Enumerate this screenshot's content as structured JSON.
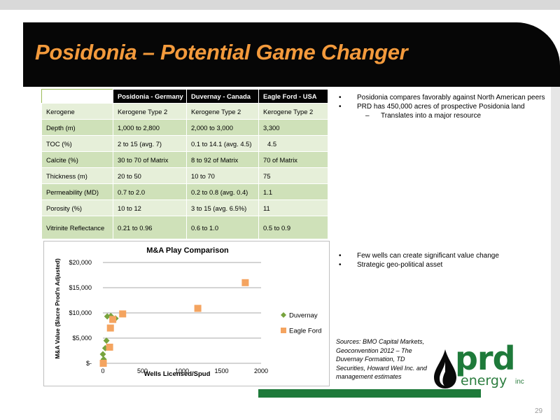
{
  "title": "Posidonia – Potential Game Changer",
  "table": {
    "headers": [
      "",
      "Posidonia - Germany",
      "Duvernay - Canada",
      "Eagle Ford - USA"
    ],
    "rows": [
      [
        "Kerogene",
        "Kerogene Type 2",
        "Kerogene Type 2",
        "Kerogene Type 2"
      ],
      [
        "Depth (m)",
        "1,000 to 2,800",
        "2,000 to 3,000",
        "3,300"
      ],
      [
        "TOC (%)",
        "2 to 15 (avg. 7)",
        "0.1 to 14.1 (avg. 4.5)",
        "4.5"
      ],
      [
        "Calcite (%)",
        "30 to 70 of Matrix",
        "8 to 92 of Matrix",
        "70 of Matrix"
      ],
      [
        "Thickness (m)",
        "20 to 50",
        "10 to 70",
        "75"
      ],
      [
        "Permeability (MD)",
        "0.7 to 2.0",
        "0.2 to 0.8 (avg. 0.4)",
        "1.1"
      ],
      [
        "Porosity (%)",
        "10 to 12",
        "3 to 15 (avg. 6.5%)",
        "11"
      ],
      [
        "Vitrinite Reflectance",
        "0.21 to 0.96",
        "0.6 to 1.0",
        "0.5 to 0.9"
      ]
    ]
  },
  "bullets_top": {
    "items": [
      "Posidonia compares favorably against North American peers",
      "PRD has 450,000 acres of prospective Posidonia land"
    ],
    "sub": "Translates into a major resource"
  },
  "bullets_bottom": {
    "items": [
      "Few wells can create significant value change",
      "Strategic geo-political asset"
    ]
  },
  "sources": "Sources: BMO Capital Markets, Geoconvention 2012 – The Duvernay Formation, TD Securities, Howard Weil Inc. and management estimates",
  "logo": {
    "prd": "prd",
    "energy": "energy",
    "inc": "inc"
  },
  "page_number": "29",
  "colors": {
    "title": "#f39a3c",
    "brand_green": "#1e7a3a",
    "duvernay": "#77a33d",
    "eagle_ford": "#f4a460"
  },
  "chart_data": {
    "type": "scatter",
    "title": "M&A Play Comparison",
    "xlabel": "Wells Licensed/Spud",
    "ylabel": "M&A Value ($/acre Prod'n Adjusted)",
    "xlim": [
      0,
      2000
    ],
    "ylim": [
      0,
      20000
    ],
    "x_ticks": [
      "0",
      "500",
      "1000",
      "1500",
      "2000"
    ],
    "y_ticks": [
      "$-",
      "$5,000",
      "$10,000",
      "$15,000",
      "$20,000"
    ],
    "legend_position": "right",
    "series": [
      {
        "name": "Duvernay",
        "marker": "diamond",
        "points": [
          [
            0,
            1800
          ],
          [
            10,
            800
          ],
          [
            30,
            3000
          ],
          [
            45,
            4500
          ],
          [
            55,
            9300
          ],
          [
            100,
            9400
          ],
          [
            160,
            8900
          ]
        ]
      },
      {
        "name": "Eagle Ford",
        "marker": "square",
        "points": [
          [
            5,
            0
          ],
          [
            85,
            3200
          ],
          [
            95,
            7000
          ],
          [
            125,
            8700
          ],
          [
            250,
            9800
          ],
          [
            1200,
            10900
          ],
          [
            1800,
            16000
          ]
        ]
      }
    ]
  }
}
